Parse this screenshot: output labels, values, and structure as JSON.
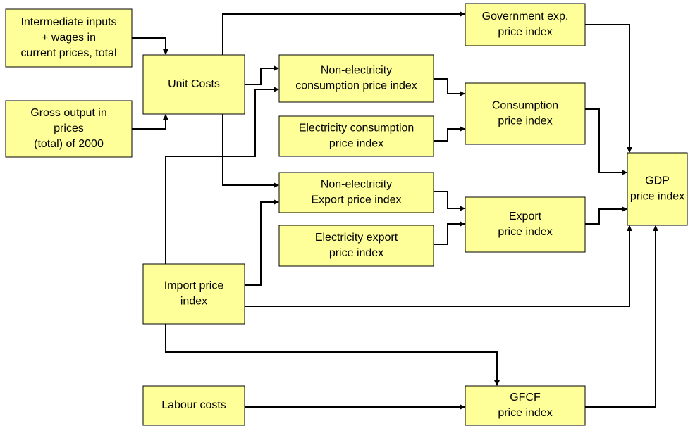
{
  "nodes": [
    {
      "lines": [
        "Intermediate inputs",
        "+ wages in",
        "current prices, total"
      ]
    },
    {
      "lines": [
        "Gross output in",
        "prices",
        "(total) of 2000"
      ]
    },
    {
      "lines": [
        "Unit Costs"
      ]
    },
    {
      "lines": [
        "Non-electricity",
        "consumption price index"
      ]
    },
    {
      "lines": [
        "Electricity consumption",
        "price index"
      ]
    },
    {
      "lines": [
        "Non-electricity",
        "Export price index"
      ]
    },
    {
      "lines": [
        "Electricity export",
        "price index"
      ]
    },
    {
      "lines": [
        "Government exp.",
        "price index"
      ]
    },
    {
      "lines": [
        "Consumption",
        "price index"
      ]
    },
    {
      "lines": [
        "Export",
        "price index"
      ]
    },
    {
      "lines": [
        "GDP",
        "price index"
      ]
    },
    {
      "lines": [
        "Import price",
        "index"
      ]
    },
    {
      "lines": [
        "Labour costs"
      ]
    },
    {
      "lines": [
        "GFCF",
        "price index"
      ]
    }
  ]
}
